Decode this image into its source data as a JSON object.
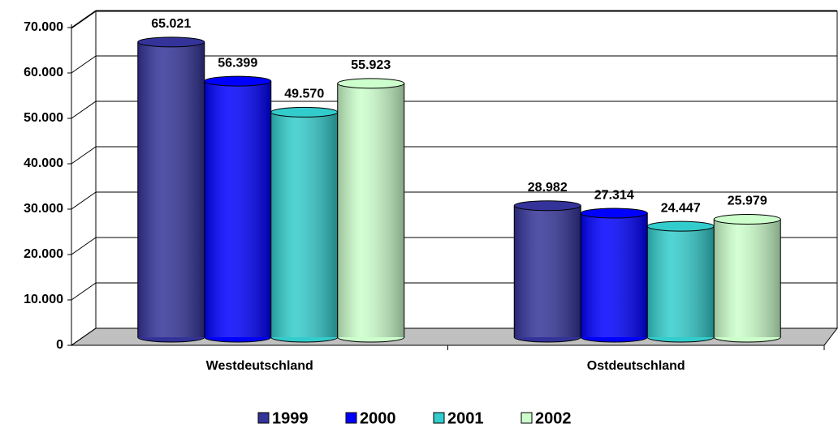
{
  "chart_data": {
    "type": "bar3d",
    "categories": [
      "Westdeutschland",
      "Ostdeutschland"
    ],
    "series": [
      {
        "name": "1999",
        "color": "#333399",
        "values": [
          65021,
          28982
        ],
        "value_labels": [
          "65.021",
          "28.982"
        ]
      },
      {
        "name": "2000",
        "color": "#0000ff",
        "values": [
          56399,
          27314
        ],
        "value_labels": [
          "56.399",
          "27.314"
        ]
      },
      {
        "name": "2001",
        "color": "#33cccc",
        "values": [
          49570,
          24447
        ],
        "value_labels": [
          "49.570",
          "24.447"
        ]
      },
      {
        "name": "2002",
        "color": "#ccffcc",
        "values": [
          55923,
          25979
        ],
        "value_labels": [
          "55.923",
          "25.979"
        ]
      }
    ],
    "ylim": [
      0,
      70000
    ],
    "yticks": [
      0,
      {
        "value": 10000,
        "label": "10.000"
      },
      {
        "value": 20000,
        "label": "20.000"
      },
      {
        "value": 30000,
        "label": "30.000"
      },
      {
        "value": 40000,
        "label": "40.000"
      },
      {
        "value": 50000,
        "label": "50.000"
      },
      {
        "value": 60000,
        "label": "60.000"
      },
      {
        "value": 70000,
        "label": "70.000"
      }
    ],
    "grid": true
  }
}
